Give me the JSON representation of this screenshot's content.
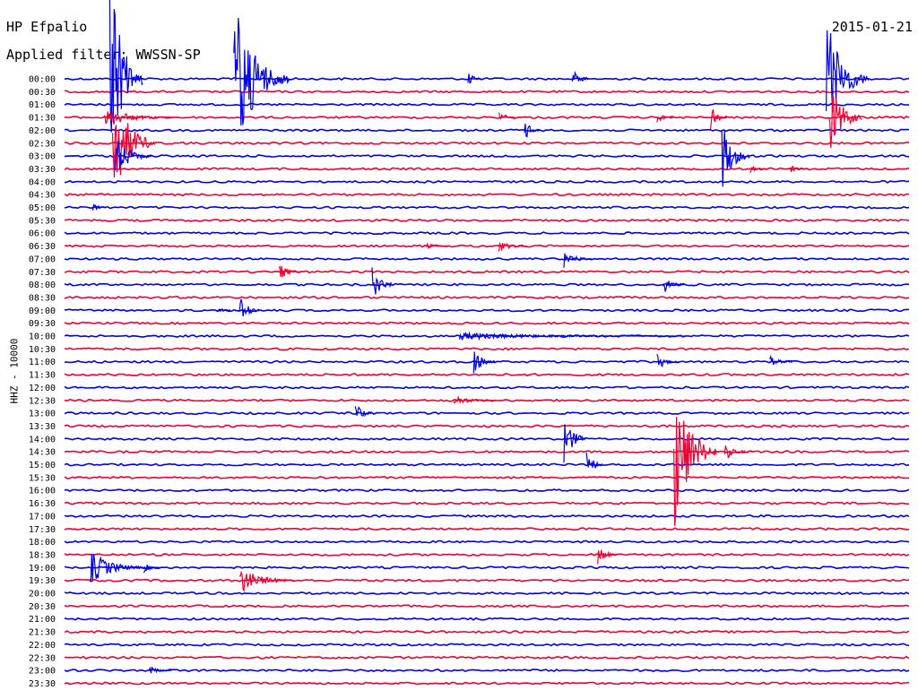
{
  "header": {
    "station": "HP Efpalio",
    "date": "2015-01-21",
    "filter_label": "Applied filter: WWSSN-SP"
  },
  "chart_data": {
    "type": "line",
    "ylabel": "HHZ - 10000",
    "row_labels": [
      "00:00",
      "00:30",
      "01:00",
      "01:30",
      "02:00",
      "02:30",
      "03:00",
      "03:30",
      "04:00",
      "04:30",
      "05:00",
      "05:30",
      "06:00",
      "06:30",
      "07:00",
      "07:30",
      "08:00",
      "08:30",
      "09:00",
      "09:30",
      "10:00",
      "10:30",
      "11:00",
      "11:30",
      "12:00",
      "12:30",
      "13:00",
      "13:30",
      "14:00",
      "14:30",
      "15:00",
      "15:30",
      "16:00",
      "16:30",
      "17:00",
      "17:30",
      "18:00",
      "18:30",
      "19:00",
      "19:30",
      "20:00",
      "20:30",
      "21:00",
      "21:30",
      "22:00",
      "22:30",
      "23:00",
      "23:30"
    ],
    "row_minutes": 30,
    "colors": [
      "#0000ee",
      "#ee0033"
    ],
    "grid": false,
    "events": [
      {
        "row": 0,
        "minute": 1.6,
        "amplitude": 120,
        "duration": 1.2
      },
      {
        "row": 0,
        "minute": 6.0,
        "amplitude": 95,
        "duration": 2.0
      },
      {
        "row": 0,
        "minute": 14.3,
        "amplitude": 8,
        "duration": 0.5
      },
      {
        "row": 0,
        "minute": 18.0,
        "amplitude": 12,
        "duration": 0.6
      },
      {
        "row": 0,
        "minute": 27.0,
        "amplitude": 75,
        "duration": 1.5
      },
      {
        "row": 3,
        "minute": 1.4,
        "amplitude": 12,
        "duration": 2.5
      },
      {
        "row": 3,
        "minute": 15.4,
        "amplitude": 8,
        "duration": 0.6
      },
      {
        "row": 3,
        "minute": 21.0,
        "amplitude": 6,
        "duration": 0.6
      },
      {
        "row": 3,
        "minute": 22.9,
        "amplitude": 14,
        "duration": 0.6
      },
      {
        "row": 3,
        "minute": 27.1,
        "amplitude": 45,
        "duration": 1.2
      },
      {
        "row": 4,
        "minute": 16.3,
        "amplitude": 12,
        "duration": 0.6
      },
      {
        "row": 5,
        "minute": 1.7,
        "amplitude": 70,
        "duration": 1.5
      },
      {
        "row": 6,
        "minute": 1.8,
        "amplitude": 25,
        "duration": 1.3
      },
      {
        "row": 6,
        "minute": 23.3,
        "amplitude": 40,
        "duration": 1.0
      },
      {
        "row": 7,
        "minute": 24.3,
        "amplitude": 6,
        "duration": 0.6
      },
      {
        "row": 7,
        "minute": 25.7,
        "amplitude": 5,
        "duration": 0.6
      },
      {
        "row": 10,
        "minute": 1.0,
        "amplitude": 5,
        "duration": 0.5
      },
      {
        "row": 13,
        "minute": 12.8,
        "amplitude": 4,
        "duration": 0.8
      },
      {
        "row": 13,
        "minute": 15.4,
        "amplitude": 7,
        "duration": 1.0
      },
      {
        "row": 14,
        "minute": 17.7,
        "amplitude": 10,
        "duration": 1.0
      },
      {
        "row": 15,
        "minute": 7.6,
        "amplitude": 10,
        "duration": 0.8
      },
      {
        "row": 16,
        "minute": 10.9,
        "amplitude": 22,
        "duration": 0.8
      },
      {
        "row": 16,
        "minute": 21.2,
        "amplitude": 12,
        "duration": 0.8
      },
      {
        "row": 18,
        "minute": 5.4,
        "amplitude": 6,
        "duration": 0.5
      },
      {
        "row": 18,
        "minute": 6.2,
        "amplitude": 20,
        "duration": 0.7
      },
      {
        "row": 20,
        "minute": 14.0,
        "amplitude": 4,
        "duration": 8.0
      },
      {
        "row": 22,
        "minute": 14.5,
        "amplitude": 14,
        "duration": 0.8
      },
      {
        "row": 22,
        "minute": 21.0,
        "amplitude": 10,
        "duration": 0.8
      },
      {
        "row": 22,
        "minute": 25.0,
        "amplitude": 9,
        "duration": 0.8
      },
      {
        "row": 25,
        "minute": 13.8,
        "amplitude": 6,
        "duration": 1.5
      },
      {
        "row": 26,
        "minute": 10.3,
        "amplitude": 14,
        "duration": 0.6
      },
      {
        "row": 28,
        "minute": 17.7,
        "amplitude": 30,
        "duration": 0.8
      },
      {
        "row": 29,
        "minute": 21.6,
        "amplitude": 95,
        "duration": 1.5
      },
      {
        "row": 29,
        "minute": 23.4,
        "amplitude": 10,
        "duration": 1.0
      },
      {
        "row": 30,
        "minute": 18.5,
        "amplitude": 16,
        "duration": 0.6
      },
      {
        "row": 37,
        "minute": 18.9,
        "amplitude": 12,
        "duration": 0.7
      },
      {
        "row": 38,
        "minute": 0.9,
        "amplitude": 20,
        "duration": 2.0
      },
      {
        "row": 38,
        "minute": 2.8,
        "amplitude": 6,
        "duration": 0.6
      },
      {
        "row": 39,
        "minute": 6.2,
        "amplitude": 16,
        "duration": 2.0
      },
      {
        "row": 46,
        "minute": 3.0,
        "amplitude": 5,
        "duration": 0.8
      }
    ]
  }
}
